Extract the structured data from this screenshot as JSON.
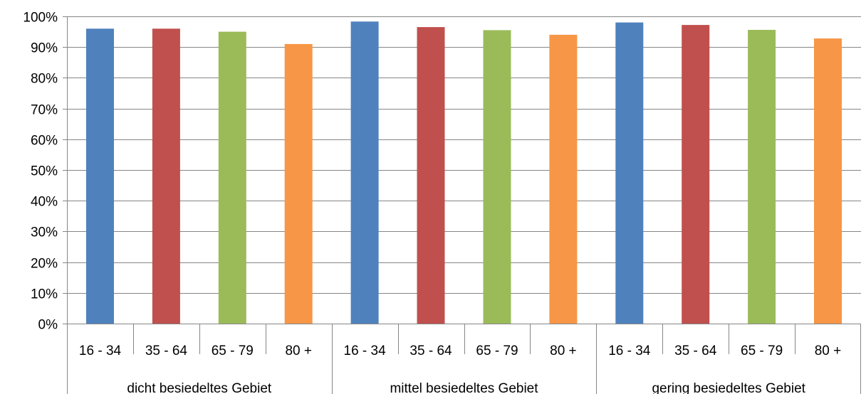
{
  "chart_data": {
    "type": "bar",
    "title": "",
    "xlabel": "",
    "ylabel": "",
    "ylim": [
      0,
      1
    ],
    "yticks": [
      "0%",
      "10%",
      "20%",
      "30%",
      "40%",
      "50%",
      "60%",
      "70%",
      "80%",
      "90%",
      "100%"
    ],
    "grid": true,
    "legend": "none",
    "groups": [
      {
        "label": "dicht besiedeltes Gebiet",
        "categories": [
          "16 - 34",
          "35 - 64",
          "65 - 79",
          "80 +"
        ],
        "values": [
          0.96,
          0.96,
          0.95,
          0.91
        ]
      },
      {
        "label": "mittel besiedeltes Gebiet",
        "categories": [
          "16 - 34",
          "35 - 64",
          "65 - 79",
          "80 +"
        ],
        "values": [
          0.983,
          0.965,
          0.955,
          0.94
        ]
      },
      {
        "label": "gering besiedeltes Gebiet",
        "categories": [
          "16 - 34",
          "35 - 64",
          "65 - 79",
          "80 +"
        ],
        "values": [
          0.98,
          0.972,
          0.956,
          0.928
        ]
      }
    ],
    "colors": [
      "#4F81BD",
      "#C0504D",
      "#9BBB59",
      "#F79646"
    ]
  }
}
